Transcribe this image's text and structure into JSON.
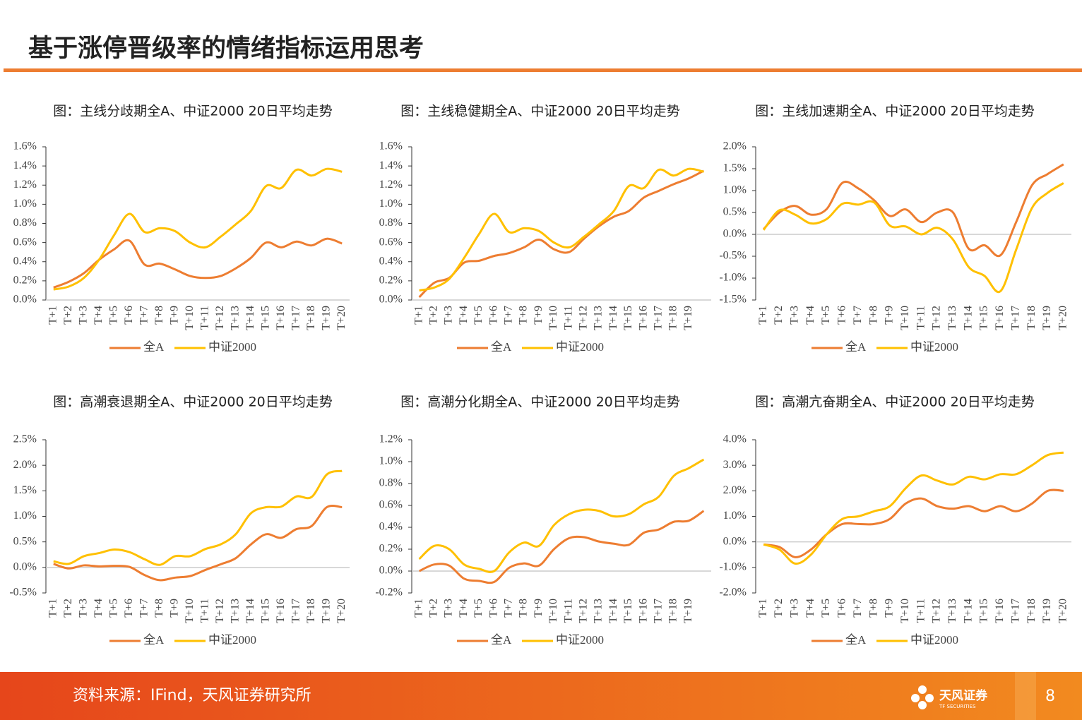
{
  "header": {
    "title": "基于涨停晋级率的情绪指标运用思考"
  },
  "chart_data": [
    {
      "type": "line",
      "title": "图：主线分歧期全A、中证2000 20日平均走势",
      "categories": [
        "T+1",
        "T+2",
        "T+3",
        "T+4",
        "T+5",
        "T+6",
        "T+7",
        "T+8",
        "T+9",
        "T+10",
        "T+11",
        "T+12",
        "T+13",
        "T+14",
        "T+15",
        "T+16",
        "T+17",
        "T+18",
        "T+19",
        "T+20"
      ],
      "series": [
        {
          "name": "全A",
          "color": "#ED7D31",
          "values": [
            0.13,
            0.19,
            0.28,
            0.42,
            0.53,
            0.62,
            0.37,
            0.38,
            0.32,
            0.25,
            0.23,
            0.25,
            0.33,
            0.44,
            0.6,
            0.55,
            0.61,
            0.57,
            0.64,
            0.59
          ]
        },
        {
          "name": "中证2000",
          "color": "#FFC000",
          "values": [
            0.11,
            0.14,
            0.23,
            0.42,
            0.68,
            0.9,
            0.71,
            0.75,
            0.72,
            0.6,
            0.55,
            0.66,
            0.79,
            0.93,
            1.19,
            1.17,
            1.36,
            1.3,
            1.37,
            1.34
          ]
        }
      ],
      "ylim": [
        0,
        1.6
      ],
      "yticks": [
        {
          "value": 0,
          "label": "0.0%"
        },
        {
          "value": 0.2,
          "label": "0.2%"
        },
        {
          "value": 0.4,
          "label": "0.4%"
        },
        {
          "value": 0.6,
          "label": "0.6%"
        },
        {
          "value": 0.8,
          "label": "0.8%"
        },
        {
          "value": 1,
          "label": "1.0%"
        },
        {
          "value": 1.2,
          "label": "1.2%"
        },
        {
          "value": 1.4,
          "label": "1.4%"
        },
        {
          "value": 1.6,
          "label": "1.6%"
        }
      ]
    },
    {
      "type": "line",
      "title": "图：主线稳健期全A、中证2000 20日平均走势",
      "categories": [
        "T+1",
        "T+2",
        "T+3",
        "T+4",
        "T+5",
        "T+6",
        "T+7",
        "T+8",
        "T+9",
        "T+10",
        "T+11",
        "T+12",
        "T+13",
        "T+14",
        "T+15",
        "T+16",
        "T+17",
        "T+18",
        "T+19",
        null
      ],
      "series": [
        {
          "name": "全A",
          "color": "#ED7D31",
          "values": [
            0.03,
            0.18,
            0.23,
            0.39,
            0.41,
            0.46,
            0.49,
            0.55,
            0.63,
            0.53,
            0.5,
            0.64,
            0.77,
            0.87,
            0.93,
            1.07,
            1.14,
            1.21,
            1.27,
            1.35
          ]
        },
        {
          "name": "中证2000",
          "color": "#FFC000",
          "values": [
            0.1,
            0.13,
            0.22,
            0.44,
            0.69,
            0.9,
            0.71,
            0.75,
            0.72,
            0.6,
            0.55,
            0.66,
            0.79,
            0.93,
            1.19,
            1.17,
            1.36,
            1.3,
            1.37,
            1.34
          ]
        }
      ],
      "ylim": [
        0,
        1.6
      ],
      "yticks": [
        {
          "value": 0,
          "label": "0.0%"
        },
        {
          "value": 0.2,
          "label": "0.2%"
        },
        {
          "value": 0.4,
          "label": "0.4%"
        },
        {
          "value": 0.6,
          "label": "0.6%"
        },
        {
          "value": 0.8,
          "label": "0.8%"
        },
        {
          "value": 1,
          "label": "1.0%"
        },
        {
          "value": 1.2,
          "label": "1.2%"
        },
        {
          "value": 1.4,
          "label": "1.4%"
        },
        {
          "value": 1.6,
          "label": "1.6%"
        }
      ]
    },
    {
      "type": "line",
      "title": "图：主线加速期全A、中证2000 20日平均走势",
      "categories": [
        "T+1",
        "T+2",
        "T+3",
        "T+4",
        "T+5",
        "T+6",
        "T+7",
        "T+8",
        "T+9",
        "T+10",
        "T+11",
        "T+12",
        "T+13",
        "T+14",
        "T+15",
        "T+16",
        "T+17",
        "T+18",
        "T+19",
        "T+20"
      ],
      "series": [
        {
          "name": "全A",
          "color": "#ED7D31",
          "values": [
            0.12,
            0.5,
            0.65,
            0.45,
            0.58,
            1.18,
            1.05,
            0.78,
            0.42,
            0.57,
            0.28,
            0.5,
            0.5,
            -0.33,
            -0.25,
            -0.48,
            0.28,
            1.12,
            1.38,
            1.6
          ]
        },
        {
          "name": "中证2000",
          "color": "#FFC000",
          "values": [
            0.1,
            0.55,
            0.45,
            0.25,
            0.35,
            0.7,
            0.68,
            0.73,
            0.2,
            0.18,
            0,
            0.15,
            -0.12,
            -0.75,
            -0.95,
            -1.3,
            -0.35,
            0.6,
            0.95,
            1.17
          ]
        }
      ],
      "ylim": [
        -1.5,
        2
      ],
      "yticks": [
        {
          "value": -1.5,
          "label": "-1.5%"
        },
        {
          "value": -1,
          "label": "-1.0%"
        },
        {
          "value": -0.5,
          "label": "-0.5%"
        },
        {
          "value": 0,
          "label": "0.0%"
        },
        {
          "value": 0.5,
          "label": "0.5%"
        },
        {
          "value": 1,
          "label": "1.0%"
        },
        {
          "value": 1.5,
          "label": "1.5%"
        },
        {
          "value": 2,
          "label": "2.0%"
        }
      ]
    },
    {
      "type": "line",
      "title": "图：高潮衰退期全A、中证2000 20日平均走势",
      "categories": [
        "T+1",
        "T+2",
        "T+3",
        "T+4",
        "T+5",
        "T+6",
        "T+7",
        "T+8",
        "T+9",
        "T+10",
        "T+11",
        "T+12",
        "T+13",
        "T+14",
        "T+15",
        "T+16",
        "T+17",
        "T+18",
        "T+19",
        "T+20"
      ],
      "series": [
        {
          "name": "全A",
          "color": "#ED7D31",
          "values": [
            0.07,
            -0.02,
            0.04,
            0.02,
            0.03,
            0.01,
            -0.15,
            -0.25,
            -0.2,
            -0.17,
            -0.05,
            0.06,
            0.18,
            0.45,
            0.65,
            0.58,
            0.75,
            0.81,
            1.18,
            1.18
          ]
        },
        {
          "name": "中证2000",
          "color": "#FFC000",
          "values": [
            0.12,
            0.07,
            0.22,
            0.28,
            0.35,
            0.3,
            0.16,
            0.05,
            0.22,
            0.22,
            0.36,
            0.45,
            0.65,
            1.06,
            1.18,
            1.19,
            1.39,
            1.38,
            1.82,
            1.89
          ]
        }
      ],
      "ylim": [
        -0.5,
        2.5
      ],
      "yticks": [
        {
          "value": -0.5,
          "label": "-0.5%"
        },
        {
          "value": 0,
          "label": "0.0%"
        },
        {
          "value": 0.5,
          "label": "0.5%"
        },
        {
          "value": 1,
          "label": "1.0%"
        },
        {
          "value": 1.5,
          "label": "1.5%"
        },
        {
          "value": 2,
          "label": "2.0%"
        },
        {
          "value": 2.5,
          "label": "2.5%"
        }
      ]
    },
    {
      "type": "line",
      "title": "图：高潮分化期全A、中证2000 20日平均走势",
      "categories": [
        "T+1",
        "T+2",
        "T+3",
        "T+4",
        "T+5",
        "T+6",
        "T+7",
        "T+8",
        "T+9",
        "T+10",
        "T+11",
        "T+12",
        "T+13",
        "T+14",
        "T+15",
        "T+16",
        "T+17",
        "T+18",
        "T+19",
        null
      ],
      "series": [
        {
          "name": "全A",
          "color": "#ED7D31",
          "values": [
            0,
            0.06,
            0.05,
            -0.07,
            -0.09,
            -0.1,
            0.03,
            0.07,
            0.05,
            0.2,
            0.3,
            0.31,
            0.27,
            0.25,
            0.24,
            0.35,
            0.38,
            0.45,
            0.46,
            0.55
          ]
        },
        {
          "name": "中证2000",
          "color": "#FFC000",
          "values": [
            0.11,
            0.23,
            0.2,
            0.06,
            0.02,
            0,
            0.17,
            0.26,
            0.23,
            0.42,
            0.52,
            0.56,
            0.55,
            0.5,
            0.52,
            0.61,
            0.68,
            0.87,
            0.94,
            1.02
          ]
        }
      ],
      "ylim": [
        -0.2,
        1.2
      ],
      "yticks": [
        {
          "value": -0.2,
          "label": "-0.2%"
        },
        {
          "value": 0,
          "label": "0.0%"
        },
        {
          "value": 0.2,
          "label": "0.2%"
        },
        {
          "value": 0.4,
          "label": "0.4%"
        },
        {
          "value": 0.6,
          "label": "0.6%"
        },
        {
          "value": 0.8,
          "label": "0.8%"
        },
        {
          "value": 1,
          "label": "1.0%"
        },
        {
          "value": 1.2,
          "label": "1.2%"
        }
      ]
    },
    {
      "type": "line",
      "title": "图：高潮亢奋期全A、中证2000 20日平均走势",
      "categories": [
        "T+1",
        "T+2",
        "T+3",
        "T+4",
        "T+5",
        "T+6",
        "T+7",
        "T+8",
        "T+9",
        "T+10",
        "T+11",
        "T+12",
        "T+13",
        "T+14",
        "T+15",
        "T+16",
        "T+17",
        "T+18",
        "T+19",
        "T+20"
      ],
      "series": [
        {
          "name": "全A",
          "color": "#ED7D31",
          "values": [
            -0.1,
            -0.2,
            -0.6,
            -0.3,
            0.3,
            0.7,
            0.7,
            0.7,
            0.9,
            1.5,
            1.7,
            1.4,
            1.3,
            1.4,
            1.2,
            1.4,
            1.2,
            1.5,
            2,
            2
          ]
        },
        {
          "name": "中证2000",
          "color": "#FFC000",
          "values": [
            -0.1,
            -0.3,
            -0.85,
            -0.5,
            0.3,
            0.9,
            1,
            1.2,
            1.4,
            2.1,
            2.6,
            2.4,
            2.25,
            2.55,
            2.45,
            2.65,
            2.65,
            3,
            3.4,
            3.5
          ]
        }
      ],
      "ylim": [
        -2,
        4
      ],
      "yticks": [
        {
          "value": -2,
          "label": "-2.0%"
        },
        {
          "value": -1,
          "label": "-1.0%"
        },
        {
          "value": 0,
          "label": "0.0%"
        },
        {
          "value": 1,
          "label": "1.0%"
        },
        {
          "value": 2,
          "label": "2.0%"
        },
        {
          "value": 3,
          "label": "3.0%"
        },
        {
          "value": 4,
          "label": "4.0%"
        }
      ]
    }
  ],
  "footer": {
    "source": "资料来源：IFind，天风证券研究所",
    "logo_name": "天风证券",
    "logo_en": "TF SECURITIES",
    "page_number": "8"
  }
}
